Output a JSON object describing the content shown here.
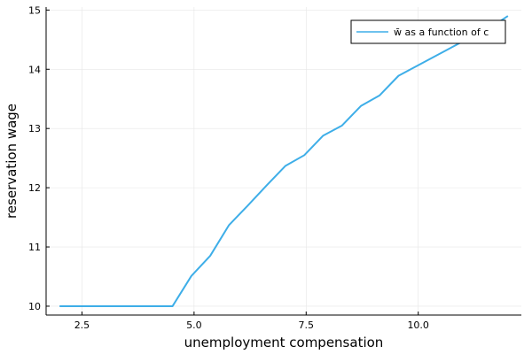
{
  "chart_data": {
    "type": "line",
    "xlabel": "unemployment compensation",
    "ylabel": "reservation wage",
    "xlim": [
      1.7,
      12.3
    ],
    "ylim": [
      9.85,
      15.05
    ],
    "xticks": [
      2.5,
      5.0,
      7.5,
      10.0
    ],
    "xtick_labels": [
      "2.5",
      "5.0",
      "7.5",
      "10.0"
    ],
    "yticks": [
      10,
      11,
      12,
      13,
      14,
      15
    ],
    "ytick_labels": [
      "10",
      "11",
      "12",
      "13",
      "14",
      "15"
    ],
    "grid": true,
    "legend_position": "top-right",
    "series": [
      {
        "name": "w̄ as a function of c",
        "color": "#3eaee8",
        "x": [
          2.0,
          2.42,
          2.84,
          3.26,
          3.68,
          4.1,
          4.52,
          4.94,
          5.36,
          5.78,
          6.2,
          6.62,
          7.04,
          7.46,
          7.88,
          8.3,
          8.72,
          9.14,
          9.56,
          9.98,
          10.4,
          10.82,
          11.24,
          11.66,
          12.0
        ],
        "y": [
          10.0,
          10.0,
          10.0,
          10.0,
          10.0,
          10.0,
          10.0,
          10.51,
          10.85,
          11.37,
          11.7,
          12.04,
          12.37,
          12.55,
          12.88,
          13.05,
          13.38,
          13.56,
          13.89,
          14.06,
          14.23,
          14.4,
          14.57,
          14.73,
          14.9
        ]
      }
    ]
  }
}
